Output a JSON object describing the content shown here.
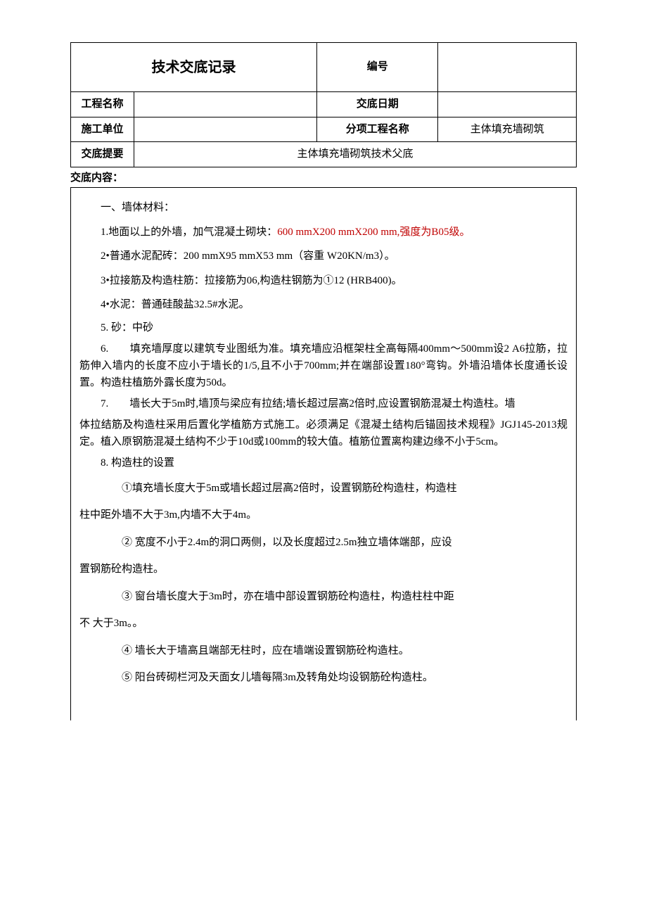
{
  "header": {
    "title": "技术交底记录",
    "number_label": "编号",
    "number_value": "",
    "project_name_label": "工程名称",
    "project_name_value": "",
    "handover_date_label": "交底日期",
    "handover_date_value": "",
    "construction_unit_label": "施工单位",
    "construction_unit_value": "",
    "subitem_label": "分项工程名称",
    "subitem_value": "主体填充墙砌筑",
    "summary_label": "交底提要",
    "summary_value": "主体填充墙砌筑技术父底"
  },
  "section_label": "交底内容：",
  "body": {
    "h1": "一、墙体材料：",
    "p1_pre": "1.地面以上的外墙，加气混凝土砌块：",
    "p1_red": "600 mmX200 mmX200 mm,强度为B05级。",
    "p2": "2•普通水泥配砖：200 mmX95 mmX53 mm（容重 W20KN/m3）。",
    "p3": "3•拉接筋及构造柱筋：拉接筋为06,构造柱钢筋为①12 (HRB400)。",
    "p4": "4•水泥：普通硅酸盐32.5#水泥。",
    "p5": "5. 砂：中砂",
    "p6": "6.　　填充墙厚度以建筑专业图纸为准。填充墙应沿框架柱全高每隔400mm～500mm设2 A6拉筋，拉筋伸入墙内的长度不应小于墙长的1/5,且不小于700mm;并在端部设置180°弯钩。外墙沿墙体长度通长设置。构造柱植筋外露长度为50d。",
    "p7": "7.　　墙长大于5m时,墙顶与梁应有拉结;墙长超过层高2倍时,应设置钢筋混凝土构造柱。墙",
    "p7b": "体拉结筋及构造柱采用后置化学植筋方式施工。必须满足《混凝土结构后锚固技术规程》JGJ145-2013规定。植入原钢筋混凝土结构不少于10d或100mm的较大值。植筋位置离构建边缘不小于5cm。",
    "p8": "8. 构造柱的设置",
    "c1": "①填充墙长度大于5m或墙长超过层高2倍时，设置钢筋砼构造柱，构造柱",
    "c1b": "柱中距外墙不大于3m,内墙不大于4m。",
    "c2": "② 宽度不小于2.4m的洞口两侧，以及长度超过2.5m独立墙体端部，应设",
    "c2b": "置钢筋砼构造柱。",
    "c3": "③ 窗台墙长度大于3m时，亦在墙中部设置钢筋砼构造柱，构造柱柱中距",
    "c3b": "不 大于3m。。",
    "c4": "④ 墙长大于墙高且端部无柱时，应在墙端设置钢筋砼构造柱。",
    "c5": "⑤ 阳台砖砌栏河及天面女儿墙每隔3m及转角处均设钢筋砼构造柱。"
  }
}
